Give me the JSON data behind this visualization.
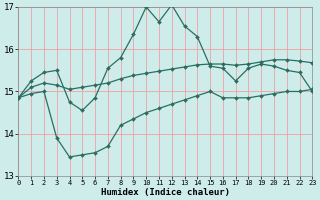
{
  "title": "",
  "xlabel": "Humidex (Indice chaleur)",
  "ylabel": "",
  "background_color": "#ceecea",
  "grid_color": "#f0a0a0",
  "line_color": "#2a6e62",
  "x_min": 0,
  "x_max": 23,
  "y_min": 13,
  "y_max": 17,
  "line1_y": [
    14.85,
    15.25,
    15.45,
    15.5,
    14.75,
    14.55,
    14.85,
    15.55,
    15.8,
    16.35,
    17.0,
    16.65,
    17.05,
    16.55,
    16.3,
    15.6,
    15.55,
    15.25,
    15.55,
    15.65,
    15.6,
    15.5,
    15.45,
    15.0
  ],
  "line2_y": [
    14.85,
    15.1,
    15.2,
    15.15,
    15.05,
    15.1,
    15.15,
    15.2,
    15.3,
    15.38,
    15.43,
    15.48,
    15.53,
    15.58,
    15.63,
    15.65,
    15.65,
    15.62,
    15.65,
    15.7,
    15.75,
    15.75,
    15.72,
    15.68
  ],
  "line3_y": [
    14.85,
    14.95,
    15.0,
    13.9,
    13.45,
    13.5,
    13.55,
    13.7,
    14.2,
    14.35,
    14.5,
    14.6,
    14.7,
    14.8,
    14.9,
    15.0,
    14.85,
    14.85,
    14.85,
    14.9,
    14.95,
    15.0,
    15.0,
    15.05
  ],
  "yticks": [
    13,
    14,
    15,
    16,
    17
  ],
  "xticks": [
    0,
    1,
    2,
    3,
    4,
    5,
    6,
    7,
    8,
    9,
    10,
    11,
    12,
    13,
    14,
    15,
    16,
    17,
    18,
    19,
    20,
    21,
    22,
    23
  ]
}
